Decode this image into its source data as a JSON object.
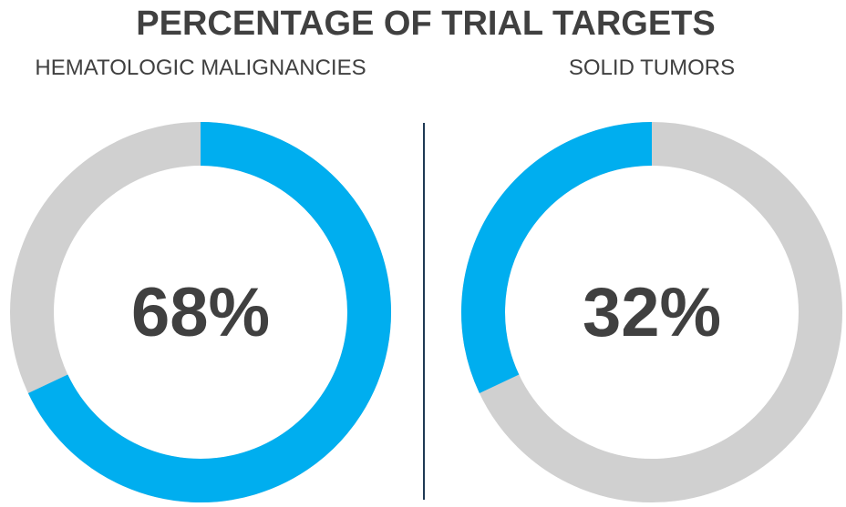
{
  "chart_data": {
    "type": "pie",
    "title": "PERCENTAGE OF TRIAL TARGETS",
    "charts": [
      {
        "subtitle": "HEMATOLOGIC MALIGNANCIES",
        "value": 68,
        "label": "68%"
      },
      {
        "subtitle": "SOLID TUMORS",
        "value": 32,
        "label": "32%"
      }
    ],
    "colors": {
      "highlight": "#00AEEF",
      "remainder": "#D0D0D0",
      "divider": "#1F3A55",
      "text": "#404040"
    }
  }
}
